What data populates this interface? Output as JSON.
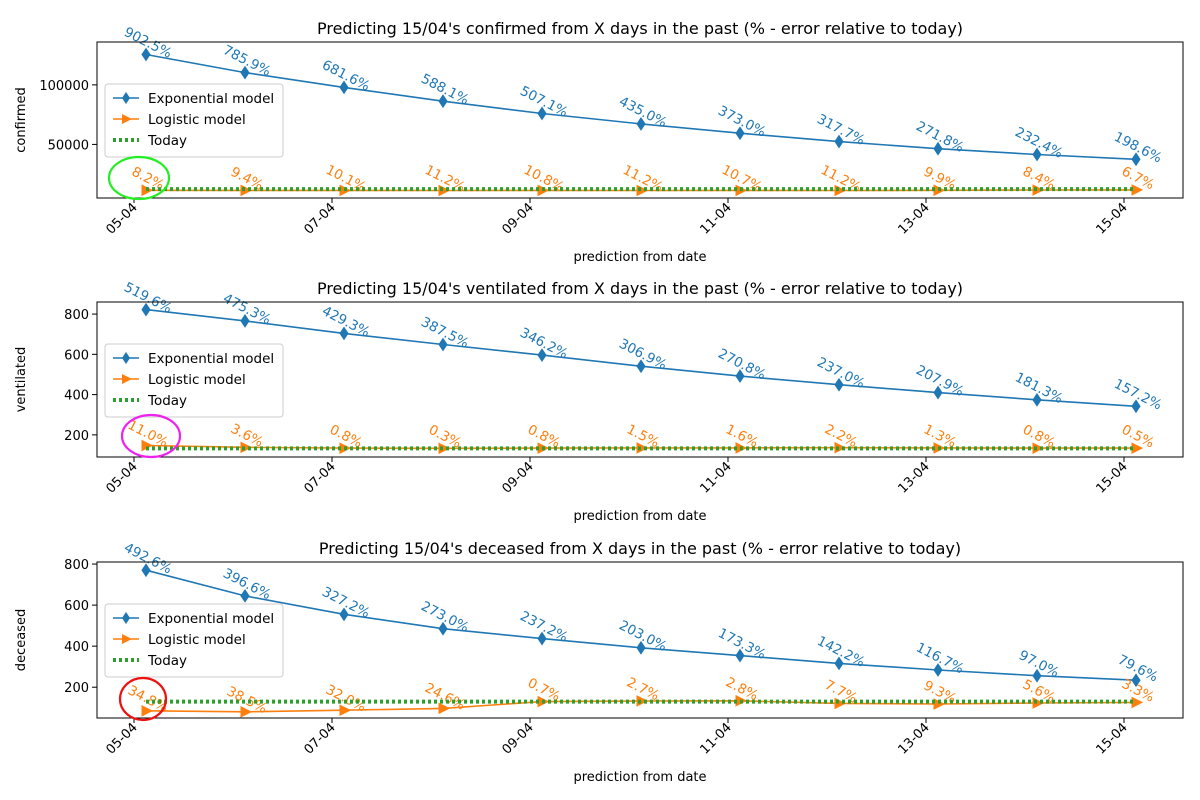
{
  "colors": {
    "exponential": "#1f77b4",
    "logistic": "#ff7f0e",
    "today": "#2ca02c",
    "annotation_green": "#22ee22",
    "annotation_magenta": "#ee22ee",
    "annotation_red": "#ee1111"
  },
  "chart_data": [
    {
      "type": "line",
      "title": "Predicting 15/04's confirmed from X days in the past (% - error relative to today)",
      "xlabel": "prediction from date",
      "ylabel": "confirmed",
      "x": [
        "05-04",
        "06-04",
        "07-04",
        "08-04",
        "09-04",
        "10-04",
        "11-04",
        "12-04",
        "13-04",
        "14-04",
        "15-04"
      ],
      "xticks": [
        "05-04",
        "07-04",
        "09-04",
        "11-04",
        "13-04",
        "15-04"
      ],
      "ylim": [
        5000,
        136000
      ],
      "yticks": [
        50000,
        100000
      ],
      "ytick_labels": [
        "50000",
        "100000"
      ],
      "legend_loc": "center-left",
      "series": [
        {
          "name": "Exponential model",
          "marker": "diamond",
          "values": [
            125500,
            110300,
            97900,
            86300,
            76000,
            67200,
            59400,
            52400,
            46400,
            41500,
            37500
          ],
          "labels": [
            "902.5%",
            "785.9%",
            "681.6%",
            "588.1%",
            "507.1%",
            "435.0%",
            "373.0%",
            "317.7%",
            "271.8%",
            "232.4%",
            "198.6%"
          ]
        },
        {
          "name": "Logistic model",
          "marker": "triangle-right",
          "values": [
            11500,
            11400,
            11400,
            11300,
            11400,
            11300,
            11400,
            11300,
            11500,
            11700,
            11800
          ],
          "labels": [
            "8.2%",
            "9.4%",
            "10.1%",
            "11.2%",
            "10.8%",
            "11.2%",
            "10.7%",
            "11.2%",
            "9.9%",
            "8.4%",
            "6.7%"
          ]
        },
        {
          "name": "Today",
          "marker": "none",
          "style": "dotted",
          "values": [
            12500,
            12500,
            12500,
            12500,
            12500,
            12500,
            12500,
            12500,
            12500,
            12500,
            12500
          ]
        }
      ]
    },
    {
      "type": "line",
      "title": "Predicting 15/04's ventilated from X days in the past (% - error relative to today)",
      "xlabel": "prediction from date",
      "ylabel": "ventilated",
      "x": [
        "05-04",
        "06-04",
        "07-04",
        "08-04",
        "09-04",
        "10-04",
        "11-04",
        "12-04",
        "13-04",
        "14-04",
        "15-04"
      ],
      "xticks": [
        "05-04",
        "07-04",
        "09-04",
        "11-04",
        "13-04",
        "15-04"
      ],
      "ylim": [
        90,
        860
      ],
      "yticks": [
        200,
        400,
        600,
        800
      ],
      "ytick_labels": [
        "200",
        "400",
        "600",
        "800"
      ],
      "legend_loc": "center-left",
      "series": [
        {
          "name": "Exponential model",
          "marker": "diamond",
          "values": [
            822,
            766,
            704,
            649,
            596,
            541,
            492,
            449,
            410,
            374,
            342
          ],
          "labels": [
            "519.6%",
            "475.3%",
            "429.3%",
            "387.5%",
            "346.2%",
            "306.9%",
            "270.8%",
            "237.0%",
            "207.9%",
            "181.3%",
            "157.2%"
          ]
        },
        {
          "name": "Logistic model",
          "marker": "triangle-right",
          "values": [
            147,
            138,
            134,
            133,
            134,
            135,
            135,
            136,
            135,
            134,
            134
          ],
          "labels": [
            "11.0%",
            "3.6%",
            "0.8%",
            "0.3%",
            "0.8%",
            "1.5%",
            "1.6%",
            "2.2%",
            "1.3%",
            "0.8%",
            "0.5%"
          ]
        },
        {
          "name": "Today",
          "marker": "none",
          "style": "dotted",
          "values": [
            133,
            133,
            133,
            133,
            133,
            133,
            133,
            133,
            133,
            133,
            133
          ]
        }
      ]
    },
    {
      "type": "line",
      "title": "Predicting 15/04's deceased from X days in the past (% - error relative to today)",
      "xlabel": "prediction from date",
      "ylabel": "deceased",
      "x": [
        "05-04",
        "06-04",
        "07-04",
        "08-04",
        "09-04",
        "10-04",
        "11-04",
        "12-04",
        "13-04",
        "14-04",
        "15-04"
      ],
      "xticks": [
        "05-04",
        "07-04",
        "09-04",
        "11-04",
        "13-04",
        "15-04"
      ],
      "ylim": [
        50,
        810
      ],
      "yticks": [
        200,
        400,
        600,
        800
      ],
      "ytick_labels": [
        "200",
        "400",
        "600",
        "800"
      ],
      "legend_loc": "center-left",
      "series": [
        {
          "name": "Exponential model",
          "marker": "diamond",
          "values": [
            770,
            645,
            555,
            485,
            437,
            392,
            354,
            316,
            284,
            256,
            234
          ],
          "labels": [
            "492.6%",
            "396.6%",
            "327.2%",
            "273.0%",
            "237.2%",
            "203.0%",
            "173.3%",
            "142.2%",
            "116.7%",
            "97.0%",
            "79.6%"
          ]
        },
        {
          "name": "Logistic model",
          "marker": "triangle-right",
          "values": [
            85,
            80,
            88,
            97,
            130,
            133,
            134,
            121,
            118,
            123,
            126
          ],
          "labels": [
            "34.8%",
            "38.5%",
            "32.0%",
            "24.6%",
            "0.7%",
            "2.7%",
            "2.8%",
            "7.7%",
            "9.3%",
            "5.6%",
            "3.3%"
          ]
        },
        {
          "name": "Today",
          "marker": "none",
          "style": "dotted",
          "values": [
            130,
            130,
            130,
            130,
            130,
            130,
            130,
            130,
            130,
            130,
            130
          ]
        }
      ]
    }
  ]
}
